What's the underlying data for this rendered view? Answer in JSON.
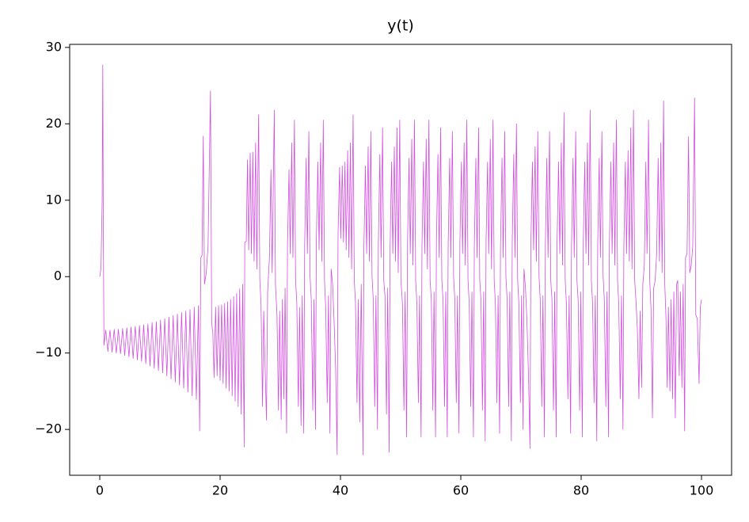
{
  "chart_data": {
    "type": "line",
    "title": "y(t)",
    "color": "#d24fe0",
    "xlim": [
      -5,
      105
    ],
    "ylim": [
      -26.0,
      30.4
    ],
    "xticks": [
      0,
      20,
      40,
      60,
      80,
      100
    ],
    "yticks": [
      {
        "value": -20,
        "label": "−20"
      },
      {
        "value": -10,
        "label": "−10"
      },
      0,
      10,
      20,
      30
    ],
    "x": [
      0,
      0.2,
      0.4,
      0.5,
      0.6,
      0.7,
      1.0,
      1.35,
      1.7,
      2.05,
      2.4,
      2.75,
      3.1,
      3.45,
      3.8,
      4.15,
      4.5,
      4.85,
      5.2,
      5.55,
      5.9,
      6.25,
      6.6,
      6.95,
      7.3,
      7.65,
      8.0,
      8.35,
      8.7,
      9.05,
      9.4,
      9.75,
      10.1,
      10.45,
      10.8,
      11.15,
      11.5,
      11.85,
      12.2,
      12.55,
      12.9,
      13.25,
      13.6,
      13.95,
      14.3,
      14.65,
      15.0,
      15.35,
      15.7,
      16.05,
      16.4,
      16.6,
      16.8,
      17.0,
      17.2,
      17.4,
      17.7,
      18.0,
      18.4,
      18.6,
      18.8,
      19.0,
      19.25,
      19.5,
      19.75,
      20.0,
      20.25,
      20.5,
      20.75,
      21.0,
      21.25,
      21.5,
      21.75,
      22.0,
      22.25,
      22.5,
      22.75,
      23.0,
      23.25,
      23.5,
      23.75,
      24.0,
      24.1,
      24.35,
      24.55,
      24.75,
      25.0,
      25.2,
      25.45,
      25.65,
      25.9,
      26.1,
      26.4,
      26.6,
      26.8,
      27.05,
      27.25,
      27.7,
      27.9,
      28.2,
      28.45,
      28.65,
      29.0,
      29.2,
      29.45,
      29.7,
      29.9,
      30.15,
      30.35,
      30.6,
      30.8,
      31.05,
      31.2,
      31.45,
      31.65,
      31.9,
      32.1,
      32.35,
      32.55,
      32.75,
      33.0,
      33.2,
      33.45,
      33.65,
      33.9,
      34.05,
      34.3,
      34.5,
      34.75,
      34.95,
      35.15,
      35.4,
      35.6,
      35.85,
      36.0,
      36.25,
      36.45,
      36.7,
      36.9,
      37.15,
      37.35,
      37.55,
      37.8,
      38.0,
      38.25,
      38.45,
      38.7,
      38.95,
      39.2,
      39.45,
      39.6,
      39.85,
      40.05,
      40.3,
      40.5,
      40.75,
      40.95,
      41.2,
      41.4,
      41.65,
      41.85,
      42.1,
      42.3,
      42.5,
      42.75,
      42.95,
      43.2,
      43.45,
      43.75,
      43.9,
      44.15,
      44.35,
      44.6,
      44.8,
      45.05,
      45.25,
      45.45,
      45.7,
      45.9,
      46.15,
      46.3,
      46.55,
      46.75,
      47.0,
      47.2,
      47.4,
      47.65,
      47.85,
      48.1,
      48.25,
      48.5,
      48.7,
      48.95,
      49.15,
      49.4,
      49.6,
      49.85,
      50.05,
      50.3,
      50.55,
      50.75,
      51.0,
      51.15,
      51.4,
      51.6,
      51.85,
      52.05,
      52.3,
      52.5,
      52.7,
      52.95,
      53.15,
      53.4,
      53.55,
      53.8,
      54.0,
      54.25,
      54.45,
      54.7,
      54.9,
      55.1,
      55.35,
      55.55,
      55.8,
      55.95,
      56.2,
      56.4,
      56.65,
      56.85,
      57.05,
      57.3,
      57.5,
      57.75,
      57.9,
      58.15,
      58.35,
      58.6,
      58.8,
      59.0,
      59.25,
      59.45,
      59.7,
      59.85,
      60.1,
      60.3,
      60.55,
      60.75,
      61.0,
      61.2,
      61.4,
      61.65,
      61.85,
      62.1,
      62.25,
      62.5,
      62.7,
      62.95,
      63.15,
      63.35,
      63.6,
      63.8,
      64.05,
      64.2,
      64.45,
      64.65,
      64.9,
      65.1,
      65.35,
      65.55,
      65.75,
      66.0,
      66.2,
      66.45,
      66.6,
      66.85,
      67.05,
      67.3,
      67.5,
      67.7,
      67.95,
      68.15,
      68.4,
      68.55,
      68.8,
      69.0,
      69.25,
      69.45,
      69.65,
      69.9,
      70.1,
      70.35,
      70.5,
      70.75,
      71.0,
      71.25,
      71.5,
      71.65,
      71.9,
      72.1,
      72.35,
      72.55,
      72.8,
      73.0,
      73.2,
      73.45,
      73.65,
      73.9,
      74.05,
      74.3,
      74.5,
      74.75,
      74.95,
      75.15,
      75.4,
      75.6,
      75.85,
      76.0,
      76.25,
      76.45,
      76.7,
      76.9,
      77.15,
      77.35,
      77.55,
      77.8,
      78.0,
      78.25,
      78.4,
      78.65,
      78.85,
      79.1,
      79.3,
      79.5,
      79.75,
      79.95,
      80.2,
      80.35,
      80.6,
      80.8,
      81.05,
      81.25,
      81.5,
      81.7,
      81.9,
      82.15,
      82.35,
      82.6,
      82.75,
      83.0,
      83.2,
      83.45,
      83.65,
      83.85,
      84.1,
      84.3,
      84.55,
      84.7,
      84.95,
      85.15,
      85.4,
      85.6,
      85.85,
      86.05,
      86.25,
      86.5,
      86.7,
      86.95,
      87.1,
      87.35,
      87.55,
      87.8,
      88.0,
      88.25,
      88.45,
      88.7,
      88.9,
      89.1,
      89.35,
      89.6,
      89.8,
      90.05,
      90.25,
      90.5,
      90.75,
      90.95,
      91.2,
      91.4,
      91.6,
      91.85,
      92.05,
      92.3,
      92.55,
      92.8,
      93.0,
      93.25,
      93.45,
      93.7,
      93.9,
      94.1,
      94.3,
      94.5,
      94.75,
      94.95,
      95.2,
      95.4,
      95.65,
      95.85,
      96.05,
      96.3,
      96.5,
      96.75,
      96.95,
      97.2,
      97.35,
      97.6,
      97.85,
      98.05,
      98.3,
      98.55,
      98.85,
      99.05,
      99.3,
      99.6,
      99.8,
      100.0
    ],
    "values": [
      0,
      1,
      10,
      27.7,
      5,
      -9,
      -7.0,
      -9.8,
      -7.0,
      -9.9,
      -6.9,
      -10.0,
      -6.9,
      -10.1,
      -6.8,
      -10.3,
      -6.7,
      -10.5,
      -6.6,
      -10.7,
      -6.5,
      -10.9,
      -6.4,
      -11.1,
      -6.3,
      -11.4,
      -6.2,
      -11.7,
      -6.0,
      -12.0,
      -5.9,
      -12.3,
      -5.7,
      -12.6,
      -5.5,
      -13.0,
      -5.3,
      -13.4,
      -5.1,
      -13.8,
      -4.9,
      -14.2,
      -4.7,
      -14.6,
      -4.5,
      -15.1,
      -4.3,
      -15.6,
      -4.0,
      -16.1,
      -3.8,
      -20.2,
      2.5,
      2.8,
      18.4,
      -1.0,
      0.5,
      4,
      24.3,
      -6.0,
      -7.5,
      -13.2,
      -4.0,
      -13.0,
      -3.8,
      -13.6,
      -3.7,
      -14.0,
      -3.5,
      -14.6,
      -3.3,
      -15.0,
      -3.0,
      -15.6,
      -2.6,
      -16.3,
      -2.2,
      -17.0,
      -1.6,
      -18.0,
      -1.0,
      -22.3,
      4.5,
      4.6,
      15.3,
      3.5,
      16.2,
      3.0,
      16.3,
      2.0,
      17.5,
      1.0,
      21.2,
      -0.5,
      -3.5,
      -17.0,
      -4.5,
      -18.8,
      -2.0,
      2.5,
      14.0,
      0.5,
      21.8,
      -1.0,
      -5.0,
      -17.5,
      -4.5,
      -18.7,
      -3.0,
      -16.0,
      -1.5,
      -20.5,
      4.0,
      14.0,
      3.0,
      17.5,
      2.5,
      20.5,
      -0.5,
      -3.5,
      -17.0,
      -4.0,
      -19.5,
      -2.5,
      -20.5,
      4.0,
      15.5,
      3.0,
      19.0,
      0,
      -3.0,
      -17.5,
      -3.0,
      -20.0,
      5.0,
      15.0,
      3.5,
      17.5,
      2.0,
      20.5,
      -0.5,
      -4.0,
      -16.5,
      -2.5,
      -20.5,
      1.0,
      -1.0,
      -6.0,
      -12.0,
      -23.3,
      5.5,
      14.3,
      5.0,
      14.5,
      4.5,
      15.0,
      3.5,
      16.5,
      2.5,
      17.5,
      1.0,
      21.2,
      -0.5,
      -3.5,
      -16.5,
      -3.0,
      -19.0,
      -1.0,
      -23.3,
      4.0,
      14.5,
      3.0,
      17.0,
      2.0,
      19.0,
      0,
      -3.0,
      -17.0,
      -2.5,
      -20.0,
      4.5,
      16.0,
      2.5,
      19.5,
      -0.5,
      -2.5,
      -18.0,
      -1.5,
      -23.0,
      4.0,
      15.0,
      3.0,
      17.0,
      2.0,
      19.5,
      0.5,
      20.5,
      -0.5,
      -3.5,
      -17.5,
      -2.0,
      -21.0,
      4.5,
      15.5,
      3.0,
      18.0,
      1.5,
      20.5,
      -0.5,
      -3.5,
      -16.5,
      -2.5,
      -21.0,
      4.0,
      15.0,
      3.0,
      18.0,
      1.0,
      20.5,
      -0.5,
      -3.0,
      -17.5,
      -2.0,
      -21.0,
      4.5,
      16.0,
      2.5,
      19.5,
      -0.5,
      -3.0,
      -17.0,
      -2.0,
      -21.0,
      4.0,
      15.5,
      2.5,
      19.0,
      0,
      -3.0,
      -16.5,
      -2.5,
      -20.5,
      4.5,
      15.0,
      3.0,
      17.5,
      1.5,
      20.5,
      -0.5,
      -3.5,
      -17.0,
      -2.0,
      -21.0,
      4.0,
      15.5,
      2.5,
      19.5,
      -0.5,
      -3.0,
      -17.5,
      -2.0,
      -21.5,
      4.5,
      15.0,
      3.0,
      18.0,
      1.0,
      20.5,
      -0.5,
      -3.5,
      -16.5,
      -2.5,
      -20.5,
      4.0,
      15.5,
      2.5,
      19.0,
      0,
      -3.0,
      -17.0,
      -2.0,
      -21.5,
      4.5,
      16.0,
      2.5,
      20.0,
      -0.5,
      -3.5,
      -16.5,
      -2.5,
      -20.0,
      1.0,
      -1.5,
      -6.0,
      -13.0,
      -22.5,
      4.5,
      15.0,
      3.5,
      17.0,
      2.0,
      19.0,
      0,
      -3.0,
      -17.0,
      -2.5,
      -21.0,
      4.0,
      15.5,
      2.5,
      19.0,
      -0.5,
      -3.0,
      -17.5,
      -2.0,
      -21.0,
      4.5,
      15.0,
      3.0,
      17.5,
      1.5,
      21.5,
      -0.5,
      -3.5,
      -16.0,
      -2.5,
      -20.5,
      4.0,
      15.5,
      2.5,
      19.0,
      -0.5,
      -3.0,
      -17.5,
      -2.0,
      -21.0,
      4.5,
      15.0,
      3.0,
      17.5,
      1.5,
      21.8,
      -0.5,
      -3.5,
      -16.5,
      -2.5,
      -21.5,
      4.0,
      15.5,
      2.5,
      19.0,
      0,
      -3.0,
      -17.0,
      -2.0,
      -21.0,
      4.5,
      15.0,
      3.0,
      17.5,
      1.5,
      20.5,
      -0.5,
      -3.5,
      -16.0,
      -2.5,
      -20.0,
      4.0,
      15.0,
      3.0,
      16.5,
      2.0,
      19.5,
      1.0,
      21.8,
      -0.5,
      -3.0,
      -7.0,
      -16.0,
      -4.5,
      -14.5,
      -1.0,
      1.5,
      15.0,
      3.0,
      20.5,
      -0.5,
      -4.0,
      -18.5,
      -1.5,
      -0.5,
      3.0,
      15.5,
      2.0,
      17.5,
      0.5,
      23.0,
      -1.0,
      -5.5,
      -14.5,
      -4.0,
      -15.0,
      -3.0,
      -16.0,
      -2.0,
      -18.5,
      -1.0,
      -0.5,
      -13.0,
      -2.0,
      -14.5,
      -1.0,
      -20.2,
      2.5,
      3.0,
      18.3,
      0.5,
      1.5,
      4.0,
      23.4,
      -5.0,
      -5.5,
      -14.0,
      -4.0,
      -3.0
    ]
  }
}
